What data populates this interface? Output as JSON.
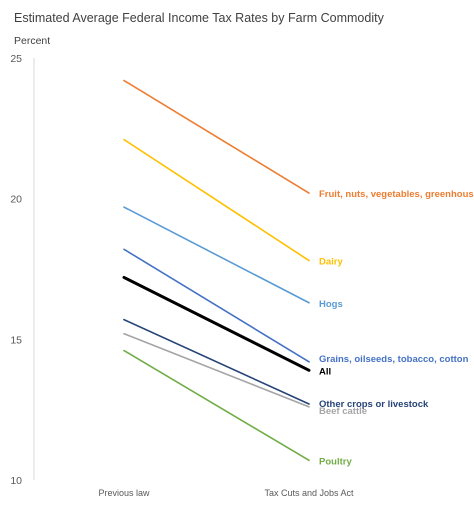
{
  "chart_data": {
    "type": "line",
    "title": "Estimated Average Federal Income  Tax Rates by Farm Commodity",
    "ylabel": "Percent",
    "xlabel": "",
    "categories": [
      "Previous law",
      "Tax Cuts and Jobs Act"
    ],
    "ylim": [
      10,
      25
    ],
    "yticks": [
      "10",
      "15",
      "20",
      "25"
    ],
    "grid": false,
    "legend": "right-end labels",
    "series": [
      {
        "name": "Fruit, nuts, vegetables, greenhouse",
        "values": [
          24.2,
          20.2
        ],
        "color": "#ED7D31",
        "width": 1.6
      },
      {
        "name": "Dairy",
        "values": [
          22.1,
          17.8
        ],
        "color": "#FFC000",
        "width": 1.6
      },
      {
        "name": "Hogs",
        "values": [
          19.7,
          16.3
        ],
        "color": "#5B9BD5",
        "width": 1.6
      },
      {
        "name": "Grains, oilseeds, tobacco, cotton",
        "values": [
          18.2,
          14.2
        ],
        "color": "#4472C4",
        "width": 1.6
      },
      {
        "name": "All",
        "values": [
          17.2,
          13.9
        ],
        "color": "#000000",
        "width": 3
      },
      {
        "name": "Other crops or livestock",
        "values": [
          15.7,
          12.7
        ],
        "color": "#264478",
        "width": 1.6
      },
      {
        "name": "Beef cattle",
        "values": [
          15.2,
          12.6
        ],
        "color": "#A5A5A5",
        "width": 1.6
      },
      {
        "name": "Poultry",
        "values": [
          14.6,
          10.7
        ],
        "color": "#70AD47",
        "width": 1.6
      }
    ]
  }
}
